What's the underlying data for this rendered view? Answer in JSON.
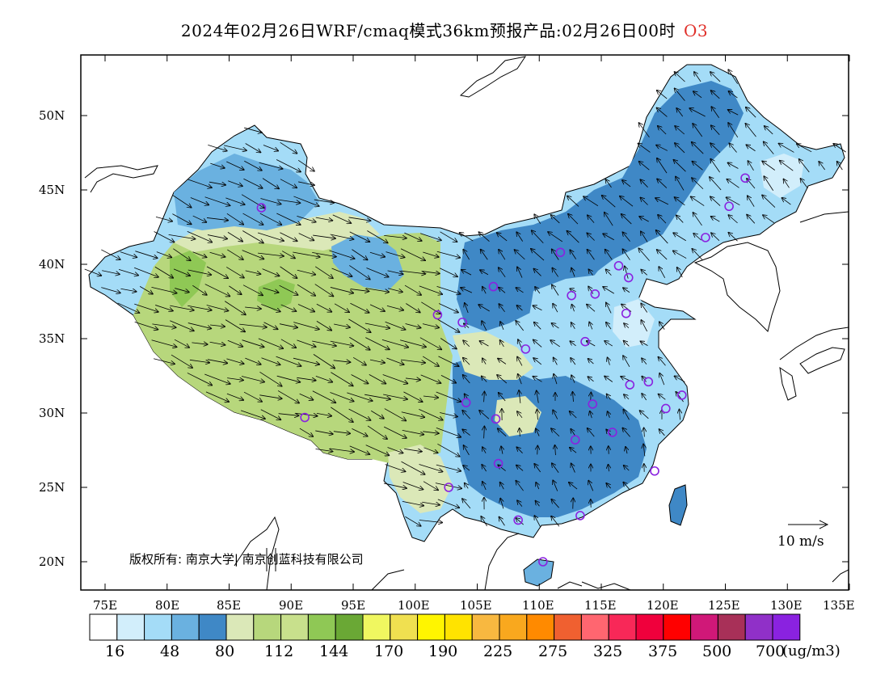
{
  "title": {
    "text": "2024年02月26日WRF/cmaq模式36km预报产品:02月26日00时",
    "species": "O3"
  },
  "axes": {
    "latitude_labels": [
      "50N",
      "45N",
      "40N",
      "35N",
      "30N",
      "25N",
      "20N"
    ],
    "longitude_labels": [
      "75E",
      "80E",
      "85E",
      "90E",
      "95E",
      "100E",
      "105E",
      "110E",
      "115E",
      "120E",
      "125E",
      "130E",
      "135E"
    ]
  },
  "legend": {
    "colors": [
      "#ffffff",
      "#d2eefb",
      "#a4dcf7",
      "#6ab1e0",
      "#3f88c6",
      "#dbe8b8",
      "#b7d77c",
      "#c8e08c",
      "#8fc855",
      "#6aa835",
      "#f0f760",
      "#f0e050",
      "#fff500",
      "#ffe300",
      "#f8b840",
      "#f9a81e",
      "#ff8a00",
      "#f06030",
      "#ff6670",
      "#f82858",
      "#f0003c",
      "#ff0000",
      "#d01878",
      "#a83058",
      "#9030c8",
      "#8a22e0"
    ],
    "labels": [
      "16",
      "48",
      "80",
      "112",
      "144",
      "170",
      "190",
      "225",
      "275",
      "325",
      "375",
      "500",
      "700"
    ],
    "unit": "(ug/m3)"
  },
  "wind_reference": {
    "label": "10 m/s"
  },
  "copyright": "版权所有: 南京大学| 南京创蓝科技有限公司",
  "stations": [
    [
      87.6,
      43.8
    ],
    [
      91.1,
      29.7
    ],
    [
      101.8,
      36.6
    ],
    [
      103.8,
      36.1
    ],
    [
      106.3,
      38.5
    ],
    [
      111.7,
      40.8
    ],
    [
      116.4,
      39.9
    ],
    [
      117.2,
      39.1
    ],
    [
      114.5,
      38.0
    ],
    [
      112.6,
      37.9
    ],
    [
      117.0,
      36.7
    ],
    [
      113.7,
      34.8
    ],
    [
      108.9,
      34.3
    ],
    [
      104.1,
      30.7
    ],
    [
      106.5,
      29.6
    ],
    [
      106.7,
      26.6
    ],
    [
      102.7,
      25.0
    ],
    [
      108.3,
      22.8
    ],
    [
      110.3,
      20.0
    ],
    [
      113.3,
      23.1
    ],
    [
      119.3,
      26.1
    ],
    [
      115.9,
      28.7
    ],
    [
      112.9,
      28.2
    ],
    [
      114.3,
      30.6
    ],
    [
      117.3,
      31.9
    ],
    [
      118.8,
      32.1
    ],
    [
      120.2,
      30.3
    ],
    [
      121.5,
      31.2
    ],
    [
      123.4,
      41.8
    ],
    [
      125.3,
      43.9
    ],
    [
      126.6,
      45.8
    ]
  ]
}
